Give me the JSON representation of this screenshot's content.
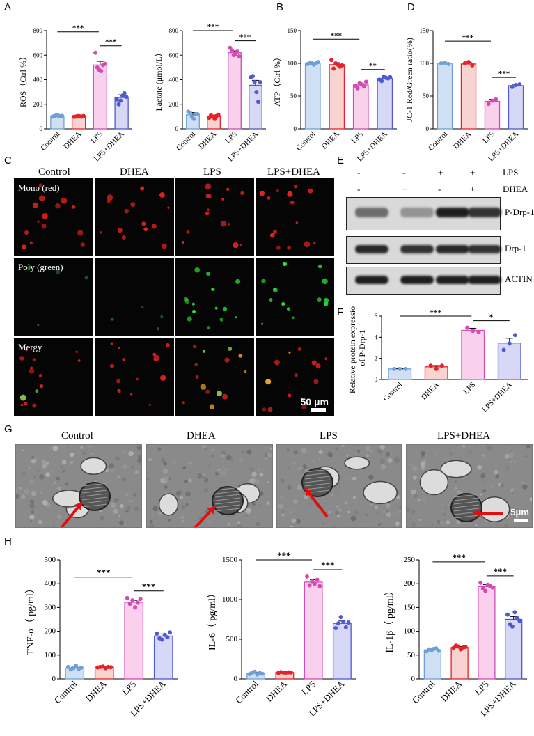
{
  "panels": {
    "A": "A",
    "B": "B",
    "C": "C",
    "D": "D",
    "E": "E",
    "F": "F",
    "G": "G",
    "H": "H"
  },
  "colors": {
    "control": "#6f9fd8",
    "control_fill": "#cfe0f5",
    "dhea": "#e8202a",
    "dhea_fill": "#f9d3d0",
    "lps": "#d34bb3",
    "lps_fill": "#fad1ec",
    "lpsdhea": "#4f59d1",
    "lpsdhea_fill": "#d7d8f6"
  },
  "categories": [
    "Control",
    "DHEA",
    "LPS",
    "LPS+DHEA"
  ],
  "chart_data": [
    {
      "id": "ros",
      "type": "bar",
      "ylabel": "ROS（Ctrl %）",
      "ylim": [
        0,
        800
      ],
      "ticks": [
        0,
        200,
        400,
        600,
        800
      ],
      "values": [
        105,
        102,
        520,
        255
      ],
      "errors": [
        5,
        4,
        30,
        22
      ],
      "points": [
        [
          100,
          105,
          110,
          108,
          103,
          106
        ],
        [
          98,
          100,
          104,
          102,
          99,
          105
        ],
        [
          620,
          500,
          480,
          470,
          520,
          530
        ],
        [
          240,
          200,
          230,
          270,
          290,
          260
        ]
      ],
      "sig": [
        {
          "from": 0,
          "to": 2,
          "label": "***"
        },
        {
          "from": 2,
          "to": 3,
          "label": "***"
        }
      ]
    },
    {
      "id": "lactate",
      "type": "bar",
      "ylabel": "Lactate (μmol/L）",
      "ylim": [
        0,
        800
      ],
      "ticks": [
        0,
        200,
        400,
        600,
        800
      ],
      "values": [
        115,
        100,
        620,
        355
      ],
      "errors": [
        18,
        12,
        15,
        40
      ],
      "points": [
        [
          140,
          130,
          100,
          80,
          120,
          120
        ],
        [
          90,
          110,
          100,
          80,
          105,
          115
        ],
        [
          660,
          640,
          600,
          610,
          630,
          590
        ],
        [
          420,
          430,
          380,
          300,
          220,
          380
        ]
      ],
      "sig": [
        {
          "from": 0,
          "to": 2,
          "label": "***"
        },
        {
          "from": 2,
          "to": 3,
          "label": "***"
        }
      ]
    },
    {
      "id": "atp",
      "type": "bar",
      "ylabel": "ATP（Ctrl %）",
      "ylim": [
        0,
        150
      ],
      "ticks": [
        0,
        50,
        100,
        150
      ],
      "values": [
        100,
        98,
        67,
        77
      ],
      "errors": [
        1,
        3,
        2,
        2
      ],
      "points": [
        [
          99,
          100,
          101,
          98,
          100,
          102
        ],
        [
          105,
          92,
          100,
          98,
          95,
          97
        ],
        [
          66,
          62,
          70,
          68,
          65,
          72
        ],
        [
          75,
          73,
          80,
          78,
          77,
          79
        ]
      ],
      "sig": [
        {
          "from": 0,
          "to": 2,
          "label": "***"
        },
        {
          "from": 2,
          "to": 3,
          "label": "**"
        }
      ]
    },
    {
      "id": "jc1",
      "type": "bar",
      "ylabel": "JC-1 Red/Green ratio(%)",
      "ylim": [
        0,
        150
      ],
      "ticks": [
        0,
        50,
        100,
        150
      ],
      "values": [
        100,
        99,
        42,
        66
      ],
      "errors": [
        1,
        2,
        3,
        2
      ],
      "points": [
        [
          100,
          101,
          99
        ],
        [
          100,
          102,
          97
        ],
        [
          38,
          43,
          45
        ],
        [
          64,
          67,
          68
        ]
      ],
      "sig": [
        {
          "from": 0,
          "to": 2,
          "label": "***"
        },
        {
          "from": 2,
          "to": 3,
          "label": "***"
        }
      ]
    },
    {
      "id": "pdrp1",
      "type": "bar",
      "ylabel": "Relative protein expression of P-Drp-1",
      "ylim": [
        0,
        6
      ],
      "ticks": [
        0,
        2,
        4,
        6
      ],
      "values": [
        1.0,
        1.2,
        4.65,
        3.45
      ],
      "errors": [
        0.02,
        0.12,
        0.2,
        0.45
      ],
      "points": [
        [
          1,
          1,
          1
        ],
        [
          1.3,
          1.0,
          1.3
        ],
        [
          4.9,
          4.6,
          4.5
        ],
        [
          2.8,
          3.4,
          4.2
        ]
      ],
      "sig": [
        {
          "from": 0,
          "to": 2,
          "label": "***"
        },
        {
          "from": 2,
          "to": 3,
          "label": "*"
        }
      ]
    },
    {
      "id": "tnf",
      "type": "bar",
      "ylabel": "TNF-α（ pg/ml）",
      "ylim": [
        0,
        500
      ],
      "ticks": [
        0,
        100,
        200,
        300,
        400,
        500
      ],
      "values": [
        45,
        49,
        322,
        180
      ],
      "errors": [
        4,
        4,
        8,
        9
      ],
      "points": [
        [
          50,
          40,
          45,
          55,
          42,
          47
        ],
        [
          48,
          50,
          52,
          45,
          50,
          49
        ],
        [
          340,
          315,
          330,
          300,
          320,
          335
        ],
        [
          190,
          170,
          165,
          185,
          175,
          195
        ]
      ],
      "sig": [
        {
          "from": 0,
          "to": 2,
          "label": "***"
        },
        {
          "from": 2,
          "to": 3,
          "label": "***"
        }
      ]
    },
    {
      "id": "il6",
      "type": "bar",
      "ylabel": "IL-6（ pg/ml）",
      "ylim": [
        0,
        1500
      ],
      "ticks": [
        0,
        500,
        1000,
        1500
      ],
      "values": [
        70,
        80,
        1220,
        700
      ],
      "errors": [
        10,
        8,
        30,
        30
      ],
      "points": [
        [
          60,
          80,
          90,
          55,
          75,
          65
        ],
        [
          75,
          85,
          80,
          78,
          82,
          80
        ],
        [
          1290,
          1180,
          1230,
          1200,
          1250,
          1170
        ],
        [
          640,
          700,
          780,
          720,
          650,
          710
        ]
      ],
      "sig": [
        {
          "from": 0,
          "to": 2,
          "label": "***"
        },
        {
          "from": 2,
          "to": 3,
          "label": "***"
        }
      ]
    },
    {
      "id": "il1b",
      "type": "bar",
      "ylabel": "IL-1β（ pg/ml）",
      "ylim": [
        0,
        250
      ],
      "ticks": [
        0,
        50,
        100,
        150,
        200,
        250
      ],
      "values": [
        61,
        66,
        194,
        125
      ],
      "errors": [
        2,
        2,
        4,
        6
      ],
      "points": [
        [
          58,
          62,
          60,
          63,
          64,
          59
        ],
        [
          65,
          70,
          68,
          62,
          66,
          67
        ],
        [
          202,
          190,
          185,
          198,
          195,
          192
        ],
        [
          135,
          115,
          110,
          140,
          128,
          122
        ]
      ],
      "sig": [
        {
          "from": 0,
          "to": 2,
          "label": "***"
        },
        {
          "from": 2,
          "to": 3,
          "label": "***"
        }
      ]
    }
  ],
  "microscopy": {
    "columns": [
      "Control",
      "DHEA",
      "LPS",
      "LPS+DHEA"
    ],
    "rows": [
      "Mono (red)",
      "Poly (green)",
      "Mergy"
    ],
    "scalebar": "50 μm"
  },
  "blot": {
    "lps_row": {
      "label": "LPS",
      "signs": [
        "-",
        "-",
        "+",
        "+"
      ]
    },
    "dhea_row": {
      "label": "DHEA",
      "signs": [
        "-",
        "+",
        "-",
        "+"
      ]
    },
    "bands": [
      "P-Drp-1",
      "Drp-1",
      "ACTIN"
    ]
  },
  "em": {
    "labels": [
      "Control",
      "DHEA",
      "LPS",
      "LPS+DHEA"
    ],
    "scalebar": "5μm"
  }
}
